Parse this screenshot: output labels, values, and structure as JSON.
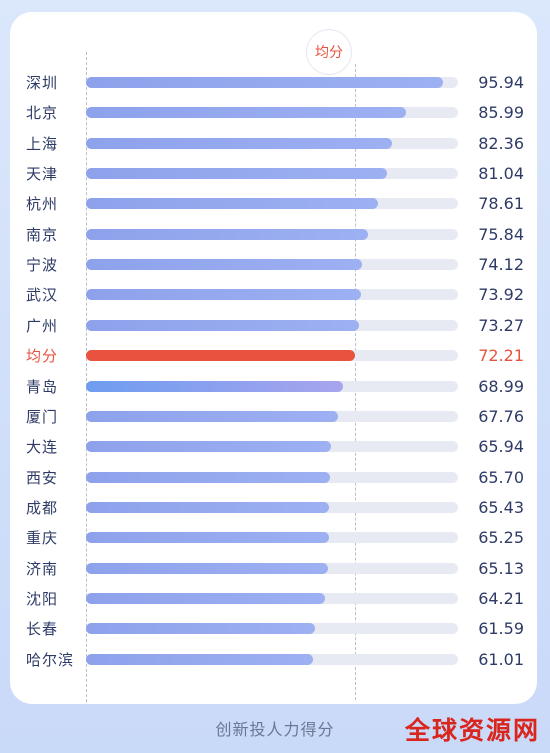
{
  "chart_data": {
    "type": "bar",
    "orientation": "horizontal",
    "categories": [
      "深圳",
      "北京",
      "上海",
      "天津",
      "杭州",
      "南京",
      "宁波",
      "武汉",
      "广州",
      "均分",
      "青岛",
      "厦门",
      "大连",
      "西安",
      "成都",
      "重庆",
      "济南",
      "沈阳",
      "长春",
      "哈尔滨"
    ],
    "values": [
      95.94,
      85.99,
      82.36,
      81.04,
      78.61,
      75.84,
      74.12,
      73.92,
      73.27,
      72.21,
      68.99,
      67.76,
      65.94,
      65.7,
      65.43,
      65.25,
      65.13,
      64.21,
      61.59,
      61.01
    ],
    "value_labels": [
      "95.94",
      "85.99",
      "82.36",
      "81.04",
      "78.61",
      "75.84",
      "74.12",
      "73.92",
      "73.27",
      "72.21",
      "68.99",
      "67.76",
      "65.94",
      "65.70",
      "65.43",
      "65.25",
      "65.13",
      "64.21",
      "61.59",
      "61.01"
    ],
    "highlight_category": "均分",
    "reference_line": {
      "label": "均分",
      "value": 72.21
    },
    "xlabel": "创新投人力得分",
    "grid": false,
    "colors": {
      "bar": "#8ea2ec",
      "highlight": "#e8533f",
      "track": "#e7eaf2",
      "text": "#2f3b67"
    }
  },
  "brand": "全球资源网"
}
